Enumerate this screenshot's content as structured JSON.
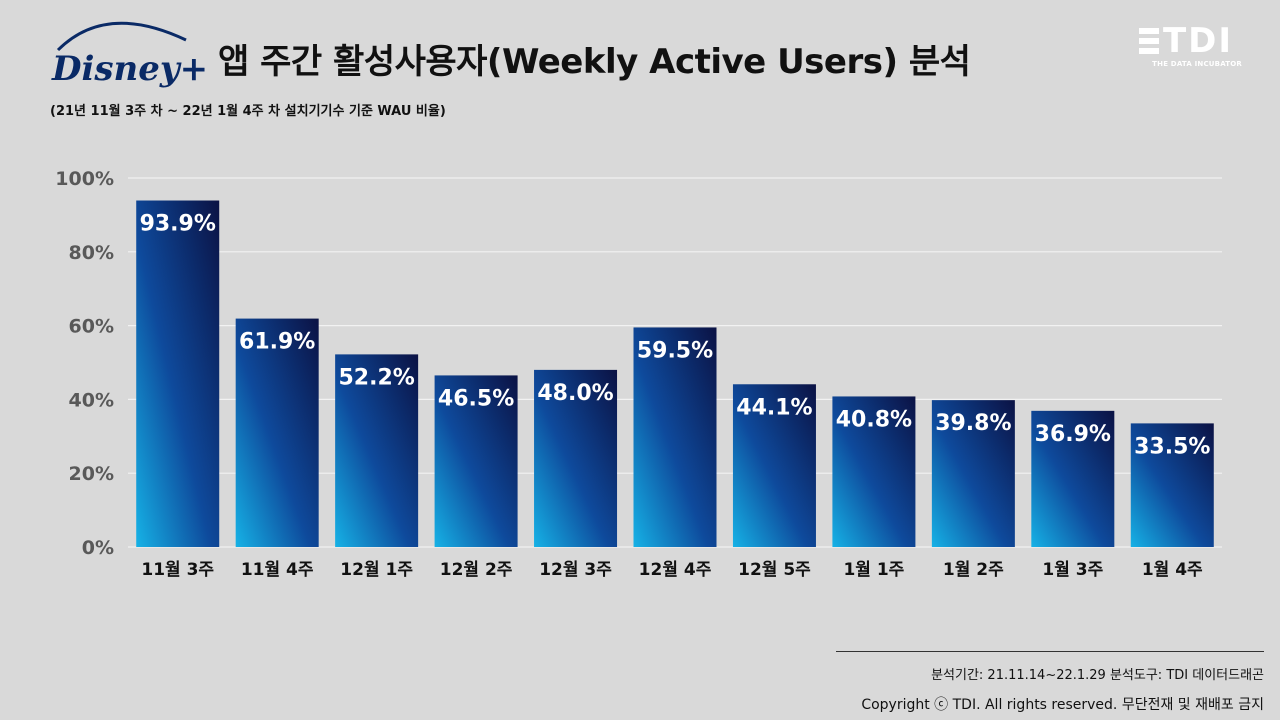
{
  "header": {
    "logo_text": "Disney+",
    "title": "앱 주간 활성사용자(Weekly Active Users) 분석",
    "subtitle": "(21년 11월 3주 차 ~ 22년 1월 4주 차 설치기기수 기준 WAU 비율)",
    "brand": "TDI",
    "brand_tagline": "THE DATA INCUBATOR"
  },
  "chart_data": {
    "type": "bar",
    "title": "앱 주간 활성사용자(Weekly Active Users) 분석",
    "categories": [
      "11월 3주",
      "11월 4주",
      "12월 1주",
      "12월 2주",
      "12월 3주",
      "12월 4주",
      "12월 5주",
      "1월 1주",
      "1월 2주",
      "1월 3주",
      "1월 4주"
    ],
    "values": [
      93.9,
      61.9,
      52.2,
      46.5,
      48.0,
      59.5,
      44.1,
      40.8,
      39.8,
      36.9,
      33.5
    ],
    "value_labels": [
      "93.9%",
      "61.9%",
      "52.2%",
      "46.5%",
      "48.0%",
      "59.5%",
      "44.1%",
      "40.8%",
      "39.8%",
      "36.9%",
      "33.5%"
    ],
    "y_ticks": [
      "0%",
      "20%",
      "40%",
      "60%",
      "80%",
      "100%"
    ],
    "ylim": [
      0,
      100
    ],
    "grid": true,
    "legend": "none",
    "colors": {
      "bar_top": "#101a4f",
      "bar_mid": "#0d3f8f",
      "bar_bottom": "#13a3d9",
      "grid": "#f2f2f2",
      "axis_text": "#595959"
    }
  },
  "footer": {
    "period": "분석기간: 21.11.14~22.1.29    분석도구: TDI 데이터드래곤",
    "copyright": "Copyright ⓒ TDI. All rights reserved. 무단전재 및 재배포 금지"
  }
}
